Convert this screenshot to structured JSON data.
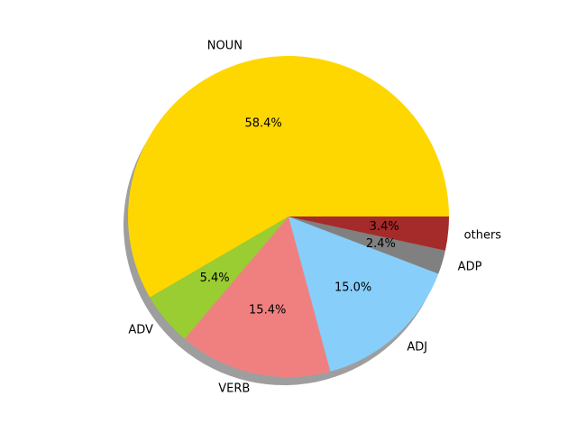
{
  "chart_data": {
    "type": "pie",
    "title": "",
    "start_angle_deg": 0,
    "direction": "counterclockwise",
    "shadow": true,
    "slices": [
      {
        "label": "NOUN",
        "value": 58.4,
        "pct_text": "58.4%",
        "color": "#FFD700"
      },
      {
        "label": "ADV",
        "value": 5.4,
        "pct_text": "5.4%",
        "color": "#9ACD32"
      },
      {
        "label": "VERB",
        "value": 15.4,
        "pct_text": "15.4%",
        "color": "#F08080"
      },
      {
        "label": "ADJ",
        "value": 15.0,
        "pct_text": "15.0%",
        "color": "#87CEFA"
      },
      {
        "label": "ADP",
        "value": 2.4,
        "pct_text": "2.4%",
        "color": "#808080"
      },
      {
        "label": "others",
        "value": 3.4,
        "pct_text": "3.4%",
        "color": "#A52A2A"
      }
    ]
  }
}
